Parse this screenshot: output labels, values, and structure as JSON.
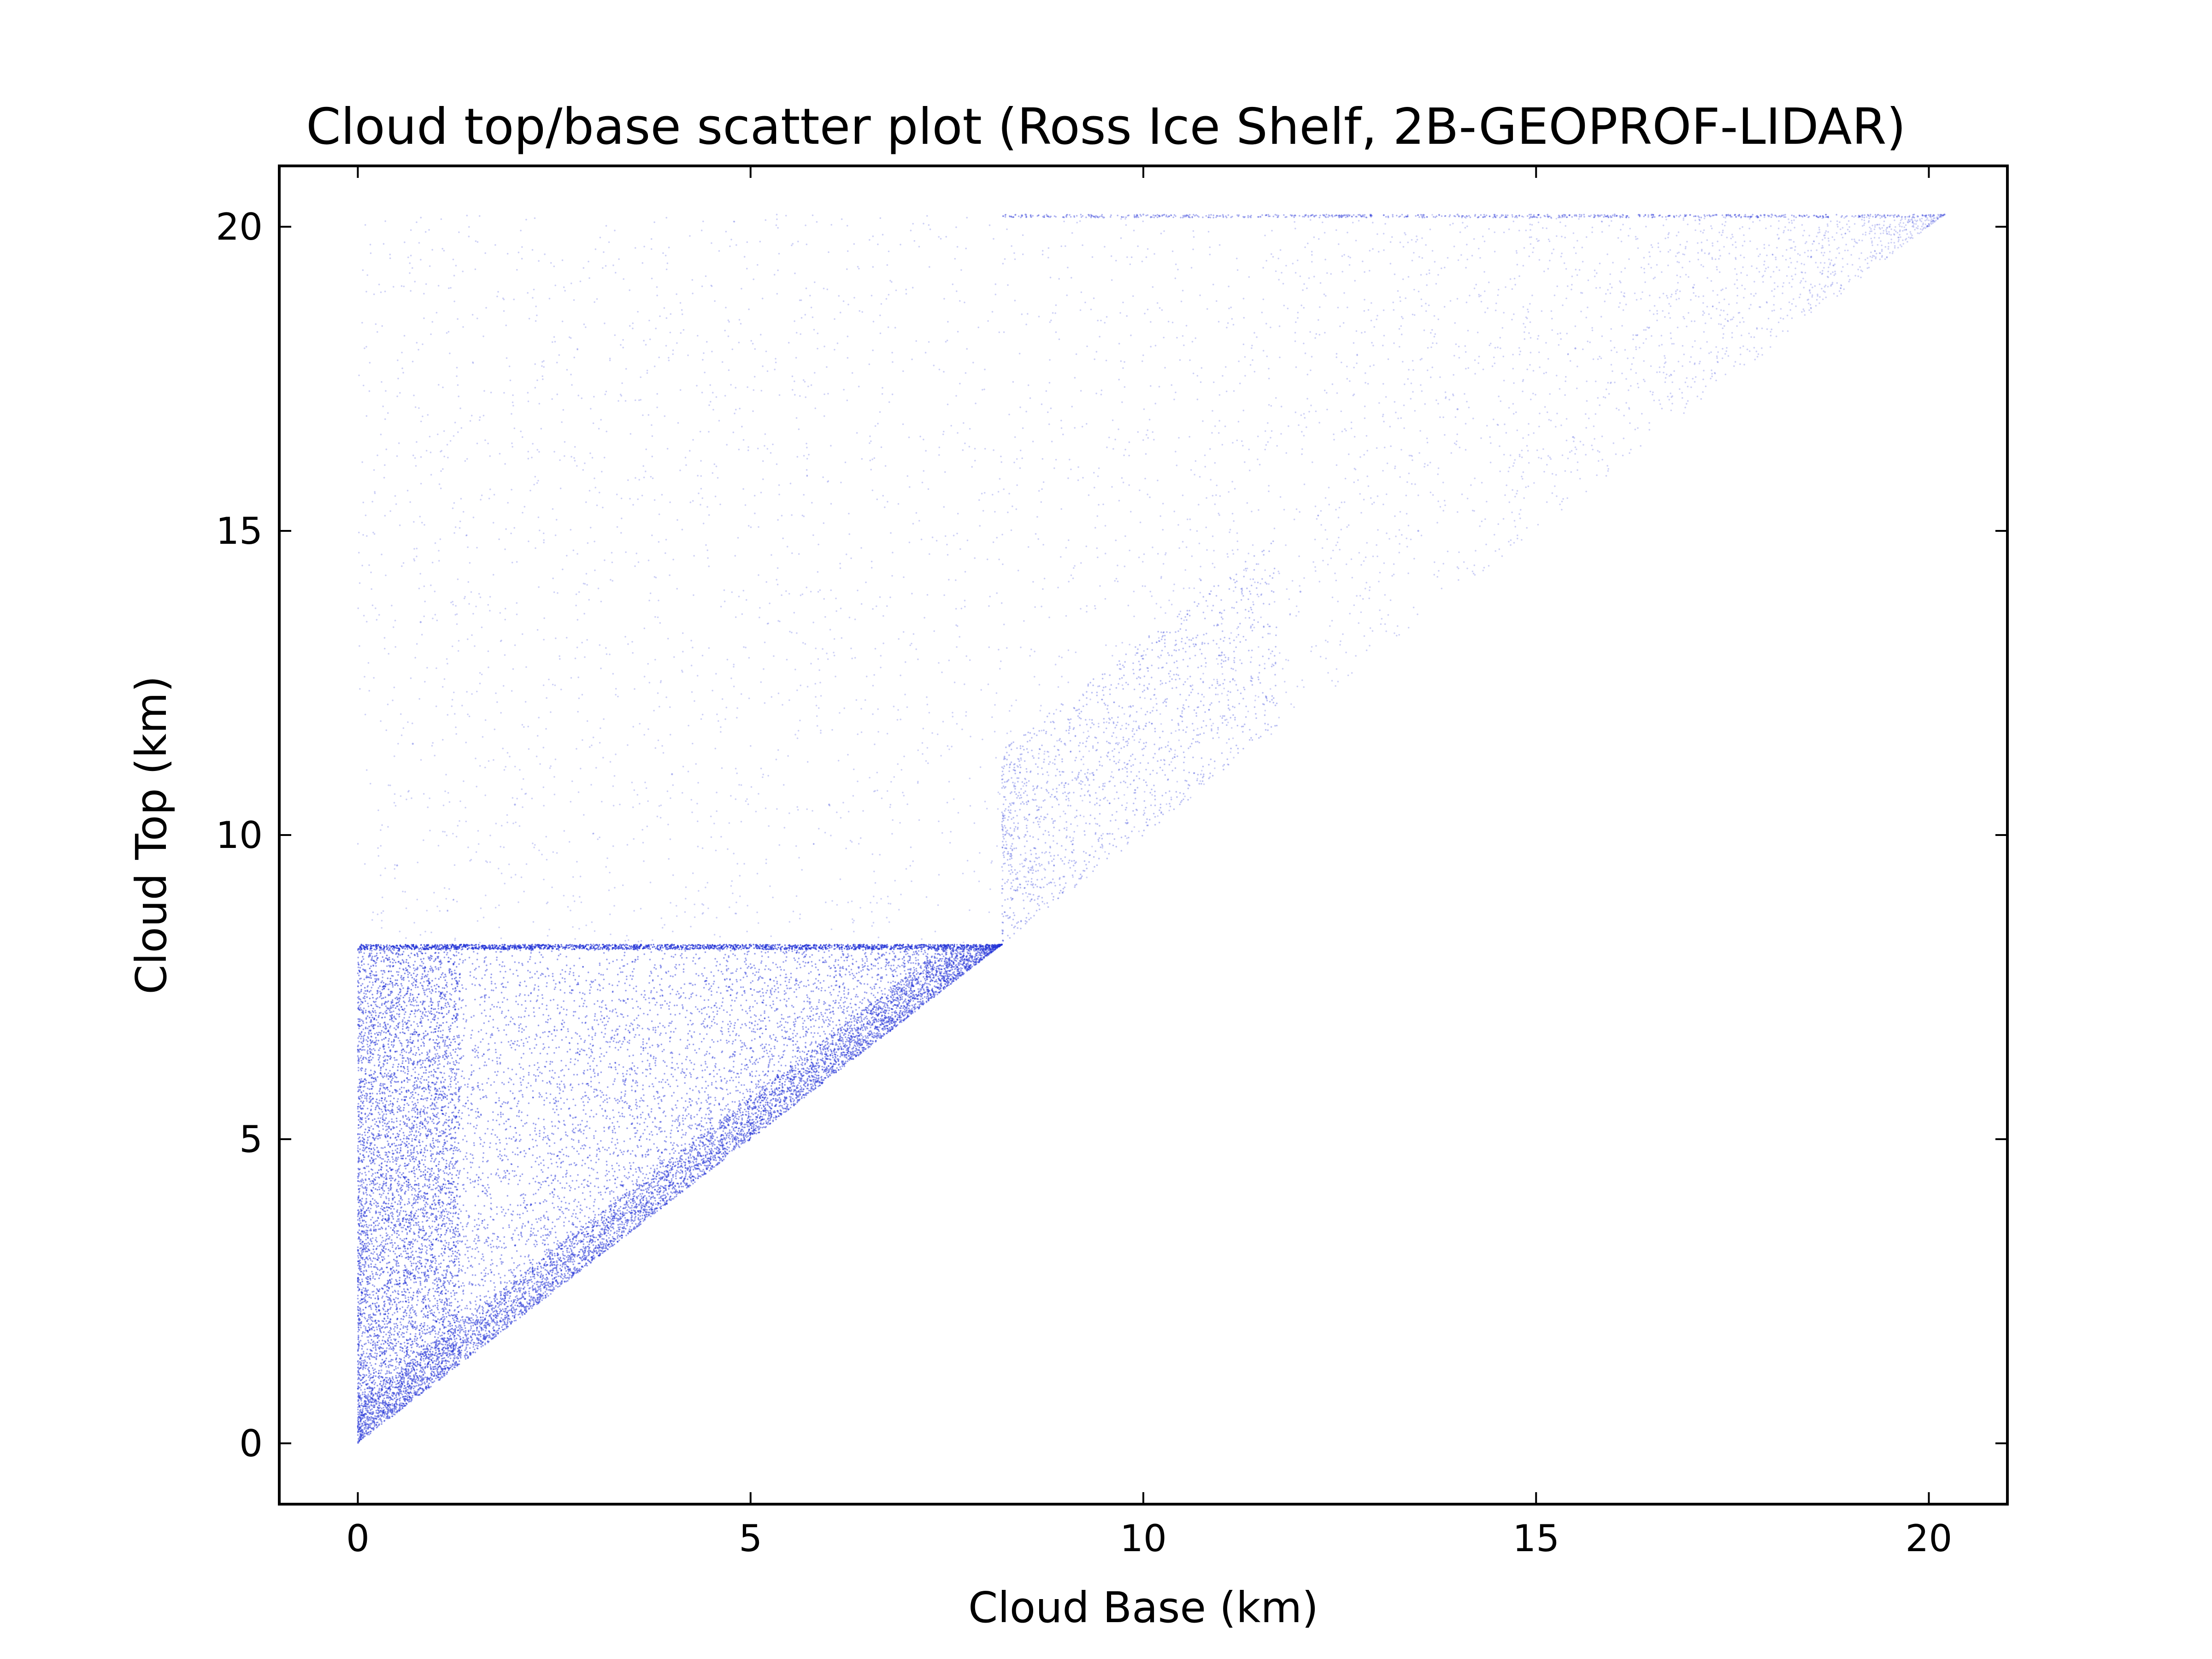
{
  "chart_data": {
    "type": "scatter",
    "title": "Cloud top/base scatter plot (Ross Ice Shelf, 2B-GEOPROF-LIDAR)",
    "xlabel": "Cloud Base (km)",
    "ylabel": "Cloud Top (km)",
    "xlim": [
      -1,
      21
    ],
    "ylim": [
      -1,
      21
    ],
    "xticks": [
      0,
      5,
      10,
      15,
      20
    ],
    "yticks": [
      0,
      5,
      10,
      15,
      20
    ],
    "xtick_labels": [
      "0",
      "5",
      "10",
      "15",
      "20"
    ],
    "ytick_labels": [
      "0",
      "5",
      "10",
      "15",
      "20"
    ],
    "grid": false,
    "legend": "none",
    "marker_color": "#1f2fd6",
    "series": [
      {
        "points_description_excluded": true,
        "features": {
          "diagonal_lower_bound": [
            [
              0.05,
              0.1
            ],
            [
              20.2,
              20.2
            ]
          ],
          "horizontal_band_top_km": 8.2,
          "horizontal_band_x_range": [
            0.0,
            8.2
          ],
          "dense_vertical_band_x_range": [
            0.0,
            1.3
          ],
          "vertical_edge_x_km": 8.2,
          "top_cap_km": 20.2
        },
        "approx_points": [
          [
            0.05,
            0.1
          ],
          [
            0.1,
            0.3
          ],
          [
            0.2,
            0.6
          ],
          [
            0.3,
            1.2
          ],
          [
            0.4,
            2.0
          ],
          [
            0.5,
            3.0
          ],
          [
            0.6,
            4.1
          ],
          [
            0.7,
            5.2
          ],
          [
            0.8,
            6.3
          ],
          [
            0.9,
            7.1
          ],
          [
            1.0,
            7.8
          ],
          [
            1.2,
            8.2
          ],
          [
            2.0,
            8.2
          ],
          [
            3.0,
            8.2
          ],
          [
            4.0,
            8.2
          ],
          [
            5.0,
            8.2
          ],
          [
            6.0,
            8.2
          ],
          [
            7.0,
            8.2
          ],
          [
            8.2,
            8.2
          ],
          [
            1.0,
            2.0
          ],
          [
            2.0,
            3.5
          ],
          [
            3.0,
            4.5
          ],
          [
            4.0,
            5.5
          ],
          [
            5.0,
            6.5
          ],
          [
            6.0,
            7.2
          ],
          [
            7.0,
            7.6
          ],
          [
            0.5,
            9.5
          ],
          [
            0.7,
            11.5
          ],
          [
            0.8,
            13.5
          ],
          [
            2.0,
            10.5
          ],
          [
            4.0,
            11.0
          ],
          [
            6.0,
            10.5
          ],
          [
            8.5,
            10.0
          ],
          [
            9.0,
            11.5
          ],
          [
            9.8,
            10.2
          ],
          [
            11.0,
            13.0
          ],
          [
            12.0,
            14.0
          ],
          [
            13.5,
            15.0
          ],
          [
            14.0,
            17.0
          ],
          [
            15.5,
            18.0
          ],
          [
            17.0,
            19.0
          ],
          [
            18.5,
            19.5
          ],
          [
            19.5,
            20.0
          ],
          [
            20.2,
            20.2
          ],
          [
            14.0,
            20.2
          ],
          [
            16.0,
            20.2
          ],
          [
            18.0,
            20.2
          ],
          [
            8.5,
            20.2
          ],
          [
            10.0,
            20.2
          ]
        ]
      }
    ]
  }
}
